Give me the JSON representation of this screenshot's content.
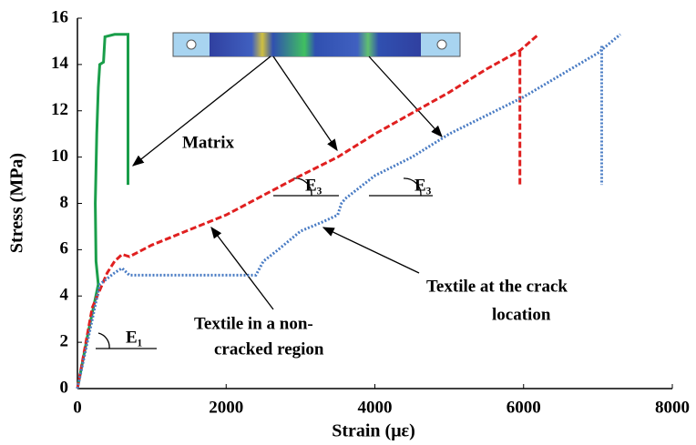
{
  "chart_data": {
    "type": "line",
    "xlabel": "Strain (με)",
    "ylabel": "Stress (MPa)",
    "xlim": [
      0,
      8000
    ],
    "ylim": [
      0,
      16
    ],
    "xticks": [
      0,
      2000,
      4000,
      6000,
      8000
    ],
    "yticks": [
      0,
      2,
      4,
      6,
      8,
      10,
      12,
      14,
      16
    ],
    "series": [
      {
        "color": "#1a9e4a",
        "dash": "solid",
        "x": [
          0,
          150,
          280,
          250,
          240,
          260,
          280,
          300,
          350,
          370,
          500,
          680,
          680
        ],
        "values": [
          0,
          2.5,
          4.5,
          5.5,
          8,
          11,
          13,
          14,
          14.1,
          15.2,
          15.3,
          15.3,
          8.8
        ]
      },
      {
        "color": "#e02020",
        "dash": "dashed",
        "x": [
          0,
          200,
          400,
          500,
          600,
          700,
          1000,
          2000,
          3000,
          3500,
          4000,
          5000,
          5500,
          5950,
          6200,
          null,
          5950,
          5950
        ],
        "values": [
          0,
          3.5,
          5,
          5.5,
          5.8,
          5.7,
          6.2,
          7.5,
          9.2,
          10,
          11,
          12.8,
          13.8,
          14.6,
          15.3,
          null,
          14.6,
          8.8
        ]
      },
      {
        "color": "#4a7cc4",
        "dash": "dotted",
        "x": [
          0,
          300,
          500,
          600,
          700,
          2400,
          2500,
          2700,
          3000,
          3300,
          3500,
          3550,
          3600,
          4000,
          4500,
          5000,
          6000,
          7000,
          7300,
          null,
          7050,
          7050
        ],
        "values": [
          0,
          4.5,
          5,
          5.2,
          4.9,
          4.9,
          5.5,
          6,
          6.8,
          7.2,
          7.5,
          8,
          8.2,
          9.2,
          10,
          11,
          12.6,
          14.5,
          15.3,
          null,
          14.8,
          8.8
        ]
      }
    ],
    "annotations": [
      "Matrix",
      "Textile in a non-",
      "cracked region",
      "Textile at the crack",
      "location",
      "E₁",
      "E₃",
      "E₃"
    ]
  }
}
